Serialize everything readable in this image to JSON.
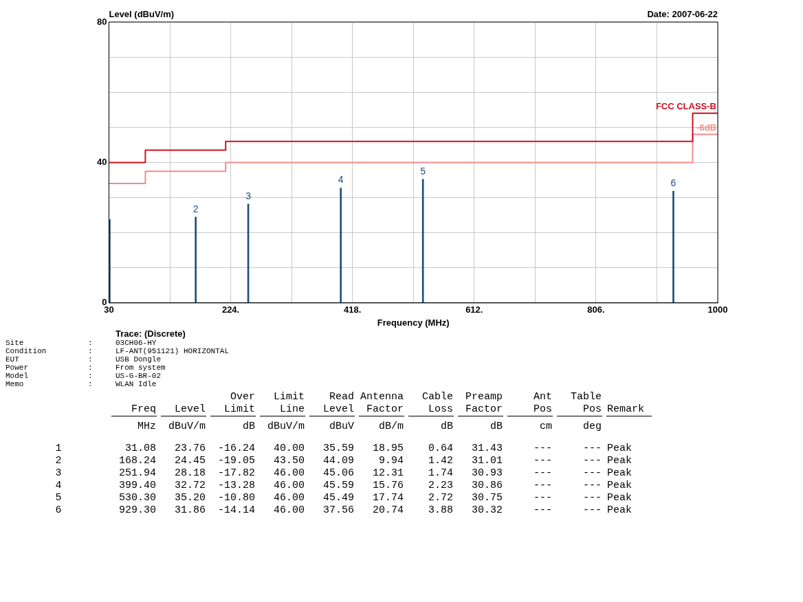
{
  "chart_data": {
    "type": "bar",
    "ylabel": "Level (dBuV/m)",
    "xlabel": "Frequency (MHz)",
    "xlim": [
      30,
      1000
    ],
    "ylim": [
      0,
      80
    ],
    "xticks": [
      30,
      {
        "value": 127,
        "label": null
      },
      {
        "value": 224,
        "label": "224."
      },
      {
        "value": 321,
        "label": null
      },
      {
        "value": 418,
        "label": "418."
      },
      {
        "value": 515,
        "label": null
      },
      {
        "value": 612,
        "label": "612."
      },
      {
        "value": 709,
        "label": null
      },
      {
        "value": 806,
        "label": "806."
      },
      {
        "value": 903,
        "label": null
      },
      1000
    ],
    "yticks": [
      0,
      {
        "value": 10,
        "label": null
      },
      {
        "value": 20,
        "label": null
      },
      {
        "value": 30,
        "label": null
      },
      40,
      {
        "value": 50,
        "label": null
      },
      {
        "value": 60,
        "label": null
      },
      {
        "value": 70,
        "label": null
      },
      80
    ],
    "grid": true,
    "series": [
      {
        "color": "#1f4e79",
        "x": [
          31.08,
          168.24,
          251.94,
          399.4,
          530.3,
          929.3
        ],
        "values": [
          23.76,
          24.45,
          28.18,
          32.72,
          35.2,
          31.86
        ]
      },
      {
        "type": "step",
        "name": "FCC CLASS-B",
        "color": "#cc1020",
        "x": [
          30,
          88,
          216,
          960,
          1000
        ],
        "values": [
          40,
          43.5,
          46,
          54,
          54
        ]
      },
      {
        "type": "step",
        "name": "-6dB",
        "color": "#f08a8a",
        "x": [
          30,
          88,
          216,
          960,
          1000
        ],
        "values": [
          34,
          37.5,
          40,
          48,
          48
        ]
      }
    ],
    "annotations": [
      "Date: 2007-06-22",
      "Trace: (Discrete)",
      "Site\t:\t03CH06-HY",
      "Condition\t:\tLF-ANT(951121) HORIZONTAL",
      "EUT\t:\tUSB Dongle",
      "Power\t:\tFrom system",
      "Model\t:\tUS-G-BR-02",
      "Memo\t:\tWLAN Idle",
      "\tFreq\tLevel\tOver\nLimit\tLimit\nLine\tRead\nLevel\tAntenna\nFactor\tCable\nLoss\tPreamp\nFactor\tAnt\nPos\tTable\nPos\tRemark",
      "\tMHz\tdBuV/m\tdB\tdBuV/m\tdBuV\tdB/m\tdB\tdB\tcm\tdeg\t",
      "1\t31.08\t23.76\t-16.24\t40.00\t35.59\t18.95\t0.64\t31.43\t---\t---\tPeak",
      "2\t168.24\t24.45\t-19.05\t43.50\t44.09\t9.94\t1.42\t31.01\t---\t---\tPeak",
      "3\t251.94\t28.18\t-17.82\t46.00\t45.06\t12.31\t1.74\t30.93\t---\t---\tPeak",
      "4\t399.40\t32.72\t-13.28\t46.00\t45.59\t15.76\t2.23\t30.86\t---\t---\tPeak",
      "5\t530.30\t35.20\t-10.80\t46.00\t45.49\t17.74\t2.72\t30.75\t---\t---\tPeak",
      "6\t929.30\t31.86\t-14.14\t46.00\t37.56\t20.74\t3.88\t30.32\t---\t---\tPeak",
      {
        "text": "2",
        "x": 168.24,
        "y": 24.45
      },
      {
        "text": "3",
        "x": 251.94,
        "y": 28.18
      },
      {
        "text": "4",
        "x": 399.4,
        "y": 32.72
      },
      {
        "text": "5",
        "x": 530.3,
        "y": 35.2
      },
      {
        "text": "6",
        "x": 929.3,
        "y": 31.86
      }
    ]
  }
}
